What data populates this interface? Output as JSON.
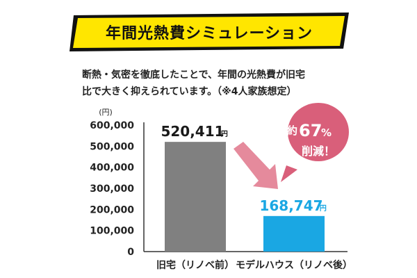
{
  "title": "年間光熱費シミュレーション",
  "description": [
    "断熱・気密を徹底したことで、年間の光熱費が旧宅",
    "比で大きく抑えられています。（※4人家族想定）"
  ],
  "badge": {
    "line1_prefix": "約",
    "line1_number": "67",
    "line1_suffix": "%",
    "line2": "削減！"
  },
  "colors": {
    "title_band": "#ffe600",
    "bar_old": "#808080",
    "bar_new": "#1aa7e3",
    "badge": "#d95f7a",
    "arrow": "#e58a9c"
  },
  "chart_data": {
    "type": "bar",
    "ylabel": "(円)",
    "ylim": [
      0,
      600000
    ],
    "yticks": [
      "0",
      "100,000",
      "200,000",
      "300,000",
      "400,000",
      "500,000",
      "600,000"
    ],
    "categories": [
      "旧宅（リノベ前）",
      "モデルハウス（リノベ後）"
    ],
    "values": [
      520411,
      168747
    ],
    "value_labels": [
      "520,411",
      "168,747"
    ],
    "value_unit": "円",
    "grid": false
  }
}
